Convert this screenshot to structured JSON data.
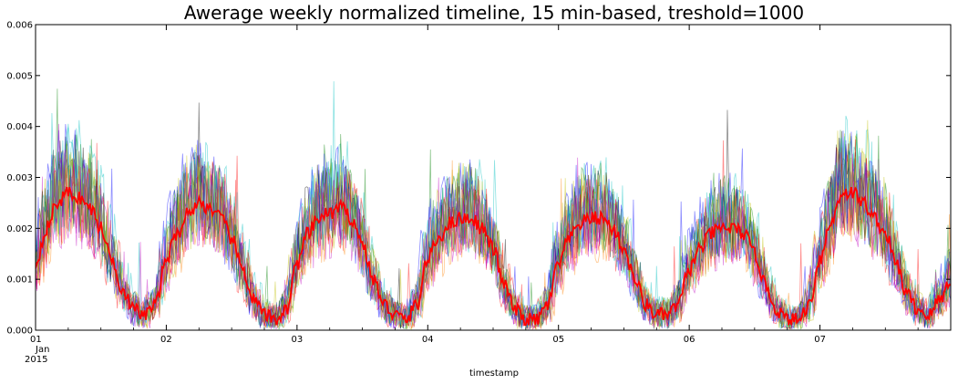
{
  "chart_data": {
    "type": "line",
    "title": "Awerage weekly normalized timeline, 15 min-based, treshold=1000",
    "xlabel": "timestamp",
    "ylabel": "",
    "x_tick_labels": [
      "01",
      "02",
      "03",
      "04",
      "05",
      "06",
      "07"
    ],
    "x_tick_sublabels": [
      "Jan",
      "2015"
    ],
    "x_range_days": [
      0,
      7
    ],
    "y_ticks": [
      "0.000",
      "0.001",
      "0.002",
      "0.003",
      "0.004",
      "0.005",
      "0.006"
    ],
    "ylim": [
      0,
      0.006
    ],
    "grid": false,
    "legend": "none",
    "mean_series": {
      "color": "#ff0000",
      "sample_step_hours": 2,
      "values": [
        0.0013,
        0.002,
        0.0025,
        0.0027,
        0.0026,
        0.0024,
        0.002,
        0.0014,
        0.0008,
        0.0004,
        0.0003,
        0.0005,
        0.0014,
        0.0019,
        0.0023,
        0.0025,
        0.0024,
        0.0022,
        0.0018,
        0.0012,
        0.0006,
        0.0003,
        0.0002,
        0.0004,
        0.0013,
        0.0019,
        0.0022,
        0.0023,
        0.0024,
        0.0022,
        0.0017,
        0.001,
        0.0005,
        0.0003,
        0.0002,
        0.0005,
        0.0014,
        0.0018,
        0.0021,
        0.0022,
        0.0022,
        0.002,
        0.0016,
        0.0009,
        0.0004,
        0.0002,
        0.0002,
        0.0005,
        0.0013,
        0.0018,
        0.0021,
        0.0022,
        0.0022,
        0.002,
        0.0016,
        0.001,
        0.0005,
        0.0003,
        0.0003,
        0.0005,
        0.0012,
        0.0016,
        0.0019,
        0.002,
        0.002,
        0.0019,
        0.0015,
        0.0009,
        0.0004,
        0.0002,
        0.0002,
        0.0005,
        0.0014,
        0.0021,
        0.0027,
        0.0027,
        0.0025,
        0.0022,
        0.0019,
        0.0013,
        0.0007,
        0.0004,
        0.0003,
        0.0006,
        0.001
      ]
    },
    "background_series_colors": [
      "#008000",
      "#0000ff",
      "#ff0000",
      "#00bfbf",
      "#bf00bf",
      "#bfbf00",
      "#000000",
      "#ff8000"
    ],
    "background_series_count": 14
  }
}
